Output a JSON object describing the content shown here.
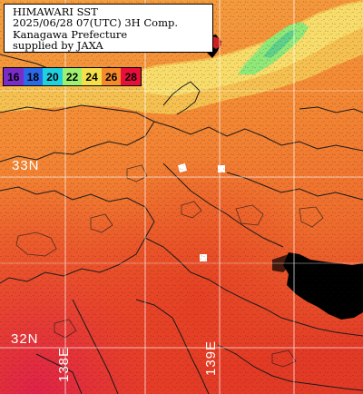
{
  "info": {
    "line1": "HIMAWARI SST",
    "line2": "2025/06/28 07(UTC) 3H Comp.",
    "line3": "Kanagawa Prefecture",
    "line4": "supplied by JAXA"
  },
  "legend": {
    "entries": [
      {
        "label": "16",
        "color": "#7a2cc8"
      },
      {
        "label": "18",
        "color": "#2a6ae8"
      },
      {
        "label": "20",
        "color": "#1fd0e0"
      },
      {
        "label": "22",
        "color": "#9ef070"
      },
      {
        "label": "24",
        "color": "#f5e04a"
      },
      {
        "label": "26",
        "color": "#f58a2a"
      },
      {
        "label": "28",
        "color": "#e8103a"
      }
    ]
  },
  "grid_labels": {
    "lat_33": "33N",
    "lat_32": "32N",
    "lon_138": "138E",
    "lon_139": "139E"
  },
  "colors": {
    "land": "#000000",
    "warm_sea": "#f07a30",
    "hot_sea": "#e83020",
    "cool_sea": "#f5c050",
    "cold_sea": "#8fe878",
    "grid": "#ffffff",
    "contour": "#1a1a1a"
  }
}
